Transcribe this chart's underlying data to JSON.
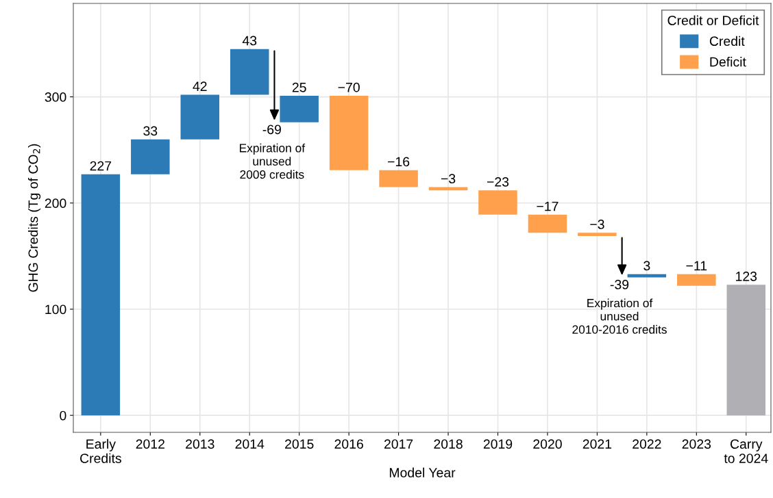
{
  "chart_data": {
    "type": "bar",
    "xlabel": "Model Year",
    "ylabel": "GHG Credits (Tg of CO$_{2}$)",
    "categories": [
      "Early\nCredits",
      "2012",
      "2013",
      "2014",
      "2015",
      "2016",
      "2017",
      "2018",
      "2019",
      "2020",
      "2021",
      "2022",
      "2023",
      "Carry\nto 2024"
    ],
    "series": [
      {
        "name": "Credit",
        "color": "#2c7bb6",
        "values": [
          null,
          33,
          42,
          43,
          25,
          null,
          null,
          null,
          null,
          null,
          null,
          3,
          null,
          null
        ],
        "base": [
          null,
          227,
          260,
          302,
          276,
          null,
          null,
          null,
          null,
          null,
          null,
          130,
          null,
          null
        ],
        "value_labels": [
          null,
          "33",
          "42",
          "43",
          "25",
          null,
          null,
          null,
          null,
          null,
          null,
          "3",
          null,
          null
        ]
      },
      {
        "name": "Deficit",
        "color": "#ffa04d",
        "values": [
          null,
          null,
          null,
          null,
          null,
          -70,
          -16,
          -3,
          -23,
          -17,
          -3,
          null,
          -11,
          null
        ],
        "base": [
          null,
          null,
          null,
          null,
          null,
          301,
          231,
          215,
          212,
          189,
          172,
          null,
          133,
          null
        ],
        "value_labels": [
          null,
          null,
          null,
          null,
          null,
          "−70",
          "−16",
          "−3",
          "−23",
          "−17",
          "−3",
          null,
          "−11",
          null
        ]
      },
      {
        "color": "#2c7bb6",
        "values": [
          227,
          null,
          null,
          null,
          null,
          null,
          null,
          null,
          null,
          null,
          null,
          null,
          null,
          null
        ],
        "value_labels": [
          "227",
          null,
          null,
          null,
          null,
          null,
          null,
          null,
          null,
          null,
          null,
          null,
          null,
          null
        ]
      },
      {
        "color": "#b0b0b4",
        "values": [
          null,
          null,
          null,
          null,
          null,
          null,
          null,
          null,
          null,
          null,
          null,
          null,
          null,
          123
        ],
        "value_labels": [
          null,
          null,
          null,
          null,
          null,
          null,
          null,
          null,
          null,
          null,
          null,
          null,
          null,
          "123"
        ]
      }
    ],
    "annotations": [
      {
        "text": "-69",
        "x": "2015",
        "y": 276
      },
      {
        "text": "Expiration of\nunused\n2009 credits",
        "x": "2015",
        "y": 276
      },
      {
        "text": "-39",
        "x": "2022",
        "y": 130
      },
      {
        "text": "Expiration of\nunused\n2010-2016 credits",
        "x": "2022",
        "y": 130
      }
    ],
    "ylim": [
      -16,
      388
    ],
    "yticks": [
      0,
      100,
      200,
      300
    ],
    "grid": true,
    "legend": "top right",
    "legend_title": "Credit or Deficit"
  }
}
